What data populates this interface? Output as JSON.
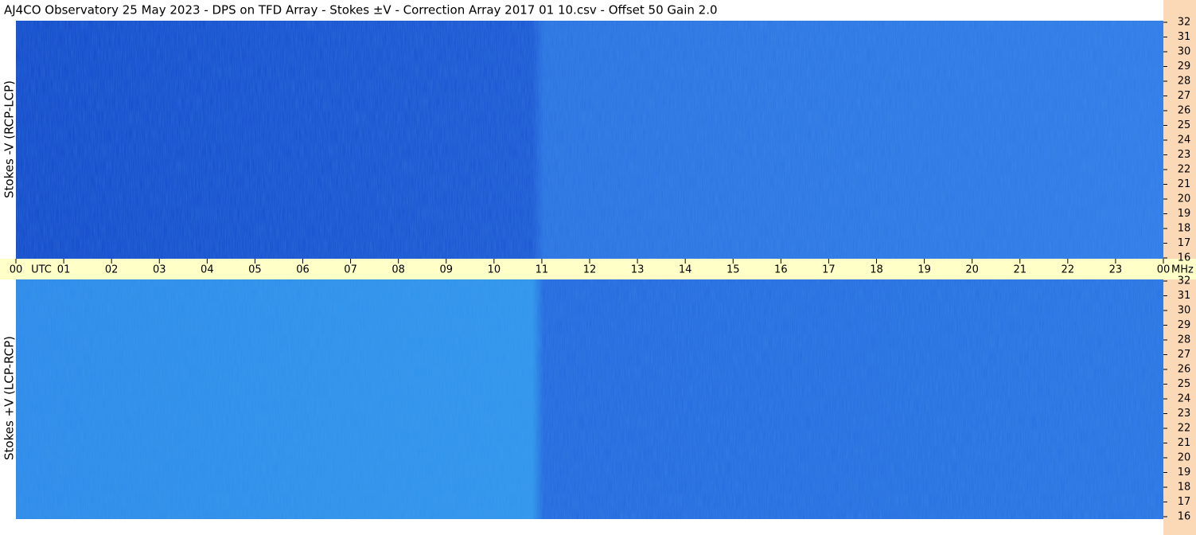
{
  "title": "AJ4CO Observatory  25 May 2023  -  DPS on TFD Array  -  Stokes ±V  -  Correction Array 2017 01 10.csv  -  Offset 50  Gain 2.0",
  "chart_data": [
    {
      "type": "spectrogram",
      "ylabel": "Stokes -V (RCP-LCP)",
      "xlabel": "UTC",
      "yunit": "MHz",
      "xlim": [
        0,
        24
      ],
      "xticks": [
        {
          "value": 0,
          "label": "00"
        },
        {
          "value": 1,
          "label": "01"
        },
        {
          "value": 2,
          "label": "02"
        },
        {
          "value": 3,
          "label": "03"
        },
        {
          "value": 4,
          "label": "04"
        },
        {
          "value": 5,
          "label": "05"
        },
        {
          "value": 6,
          "label": "06"
        },
        {
          "value": 7,
          "label": "07"
        },
        {
          "value": 8,
          "label": "08"
        },
        {
          "value": 9,
          "label": "09"
        },
        10,
        11,
        12,
        13,
        14,
        15,
        16,
        17,
        18,
        19,
        20,
        21,
        22,
        23,
        {
          "value": 24,
          "label": "00"
        }
      ],
      "ylim": [
        16,
        32
      ],
      "yticks": [
        16,
        17,
        18,
        19,
        20,
        21,
        22,
        23,
        24,
        25,
        26,
        27,
        28,
        29,
        30,
        31,
        32
      ]
    },
    {
      "type": "spectrogram",
      "ylabel": "Stokes +V (LCP-RCP)",
      "ylim": [
        16,
        32
      ],
      "yticks": [
        16,
        17,
        18,
        19,
        20,
        21,
        22,
        23,
        24,
        25,
        26,
        27,
        28,
        29,
        30,
        31,
        32
      ]
    }
  ]
}
